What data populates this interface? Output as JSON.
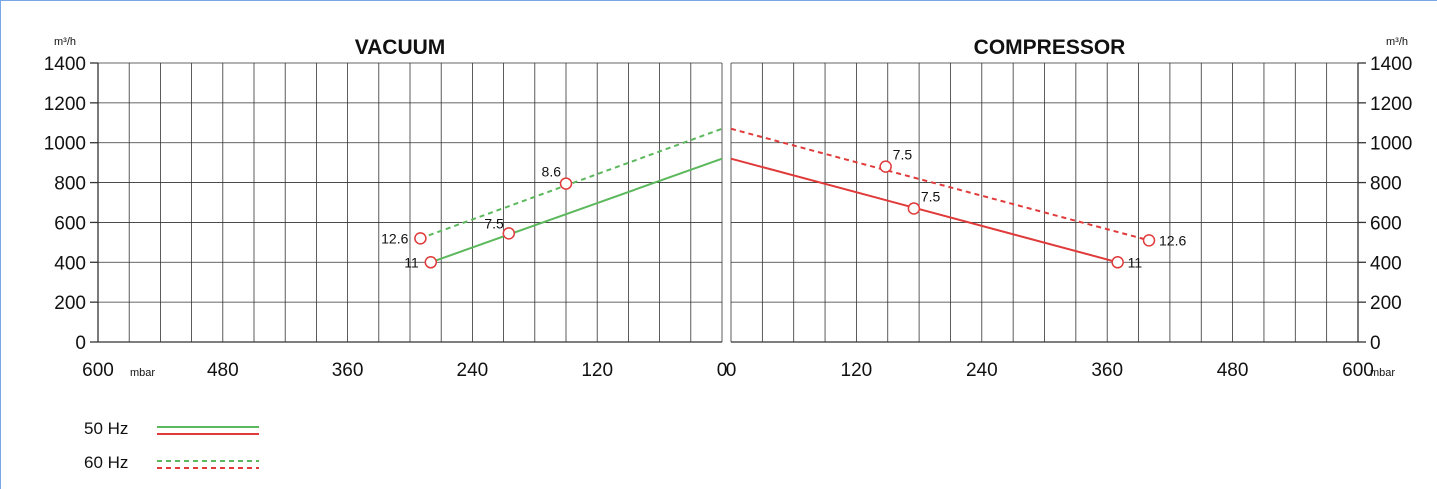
{
  "chart_data": [
    {
      "type": "line",
      "title": "VACUUM",
      "ylabel": "m³/h",
      "xlabel": "mbar",
      "xlim": [
        600,
        0
      ],
      "ylim": [
        0,
        1400
      ],
      "x_ticks": [
        "600",
        "480",
        "360",
        "240",
        "120",
        "0"
      ],
      "y_ticks": [
        "1400",
        "1200",
        "1000",
        "800",
        "600",
        "400",
        "200",
        "0"
      ],
      "grid": true,
      "series": [
        {
          "name": "50 Hz",
          "color": "#5cb85c",
          "style": "solid",
          "line": [
            [
              280,
              400
            ],
            [
              0,
              920
            ]
          ],
          "points": [
            {
              "x": 280,
              "y": 400,
              "label": "11"
            },
            {
              "x": 205,
              "y": 545,
              "label": "7.5"
            }
          ]
        },
        {
          "name": "60 Hz",
          "color": "#5cb85c",
          "style": "dashed",
          "line": [
            [
              290,
              520
            ],
            [
              0,
              1070
            ]
          ],
          "points": [
            {
              "x": 290,
              "y": 520,
              "label": "12.6"
            },
            {
              "x": 150,
              "y": 795,
              "label": "8.6"
            }
          ]
        }
      ]
    },
    {
      "type": "line",
      "title": "COMPRESSOR",
      "ylabel": "m³/h",
      "xlabel": "mbar",
      "xlim": [
        0,
        600
      ],
      "ylim": [
        0,
        1400
      ],
      "x_ticks": [
        "0",
        "120",
        "240",
        "360",
        "480",
        "600"
      ],
      "y_ticks": [
        "1400",
        "1200",
        "1000",
        "800",
        "600",
        "400",
        "200",
        "0"
      ],
      "grid": true,
      "series": [
        {
          "name": "50 Hz",
          "color": "#e03a3a",
          "style": "solid",
          "line": [
            [
              0,
              920
            ],
            [
              370,
              400
            ]
          ],
          "points": [
            {
              "x": 370,
              "y": 400,
              "label": "11"
            },
            {
              "x": 175,
              "y": 670,
              "label": "7.5"
            }
          ]
        },
        {
          "name": "60 Hz",
          "color": "#e03a3a",
          "style": "dashed",
          "line": [
            [
              0,
              1070
            ],
            [
              400,
              510
            ]
          ],
          "points": [
            {
              "x": 400,
              "y": 510,
              "label": "12.6"
            },
            {
              "x": 148,
              "y": 880,
              "label": "7.5"
            }
          ]
        }
      ]
    }
  ],
  "legend": [
    {
      "label": "50 Hz",
      "style": "solid",
      "colors": [
        "#5cb85c",
        "#e03a3a"
      ]
    },
    {
      "label": "60 Hz",
      "style": "dashed",
      "colors": [
        "#5cb85c",
        "#e03a3a"
      ]
    }
  ]
}
